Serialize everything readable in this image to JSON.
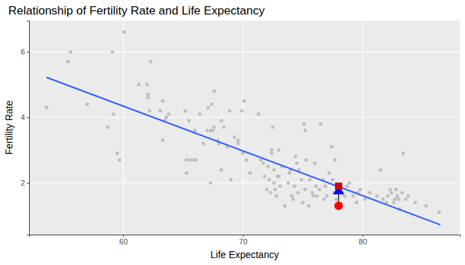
{
  "chart_data": {
    "type": "scatter",
    "title": "Relationship of Fertility Rate and Life Expectancy",
    "x_label": "Life Expectancy",
    "y_label": "Fertility Rate",
    "xlim": [
      52.14,
      88.15
    ],
    "ylim": [
      0.42,
      6.95
    ],
    "xticks": [
      60,
      70,
      80
    ],
    "yticks": [
      2,
      4,
      6
    ],
    "grid": true,
    "series": [
      {
        "type": "scatter",
        "marker": "circle",
        "color": "#bebebe",
        "x": [
          53.6,
          55.4,
          55.6,
          57.0,
          58.7,
          59.1,
          59.2,
          59.5,
          59.7,
          60.1,
          61.3,
          62.0,
          62.1,
          62.1,
          62.3,
          62.2,
          63.1,
          63.3,
          63.3,
          63.5,
          63.6,
          63.8,
          65.2,
          65.3,
          65.3,
          65.5,
          65.6,
          65.9,
          66.0,
          66.1,
          66.4,
          66.7,
          67.0,
          67.1,
          67.3,
          67.3,
          67.4,
          67.5,
          67.6,
          67.6,
          67.9,
          68.0,
          68.2,
          68.2,
          68.4,
          68.7,
          68.9,
          69.0,
          69.3,
          69.6,
          69.6,
          69.9,
          70.0,
          70.1,
          70.3,
          70.6,
          71.3,
          71.5,
          71.7,
          71.8,
          72.0,
          72.1,
          72.2,
          72.3,
          72.4,
          72.4,
          72.5,
          72.6,
          72.6,
          72.7,
          72.8,
          72.9,
          73.0,
          73.0,
          73.1,
          73.3,
          73.5,
          73.8,
          73.9,
          74.0,
          74.1,
          74.2,
          74.3,
          74.4,
          74.5,
          74.6,
          74.7,
          74.9,
          75.0,
          75.1,
          75.2,
          75.2,
          75.3,
          75.5,
          75.6,
          75.8,
          75.9,
          76.0,
          76.1,
          76.2,
          76.4,
          76.5,
          76.7,
          76.8,
          76.9,
          77.0,
          77.2,
          77.4,
          77.5,
          77.6,
          77.7,
          77.8,
          77.9,
          78.3,
          78.5,
          78.7,
          78.9,
          79.2,
          79.5,
          79.6,
          79.8,
          80.2,
          80.6,
          81.2,
          81.5,
          81.7,
          82.0,
          82.1,
          82.3,
          82.4,
          82.6,
          82.7,
          82.8,
          82.9,
          83.0,
          83.1,
          83.3,
          83.4,
          83.6,
          83.8,
          84.4,
          85.3,
          86.4
        ],
        "values": [
          4.3,
          5.7,
          6.0,
          4.4,
          3.7,
          6.0,
          4.1,
          2.9,
          2.7,
          6.6,
          5.0,
          5.0,
          4.7,
          4.6,
          5.7,
          4.2,
          4.2,
          4.5,
          3.3,
          3.9,
          4.0,
          4.1,
          4.2,
          2.7,
          2.3,
          3.9,
          2.7,
          2.7,
          3.6,
          2.7,
          4.1,
          3.2,
          3.6,
          4.3,
          3.6,
          2.0,
          4.4,
          3.6,
          4.8,
          3.7,
          3.3,
          3.2,
          3.9,
          2.4,
          3.7,
          3.1,
          4.2,
          2.1,
          3.4,
          3.3,
          3.2,
          4.2,
          2.9,
          4.5,
          2.7,
          2.3,
          4.1,
          2.7,
          2.6,
          2.2,
          1.8,
          2.5,
          2.1,
          1.7,
          3.0,
          2.9,
          3.7,
          2.4,
          2.0,
          1.8,
          1.6,
          2.2,
          2.2,
          3.0,
          1.9,
          2.5,
          1.3,
          2.0,
          2.3,
          2.4,
          1.6,
          1.5,
          1.9,
          2.8,
          2.6,
          1.7,
          2.4,
          2.1,
          1.4,
          3.8,
          1.8,
          3.6,
          2.7,
          1.3,
          2.1,
          1.7,
          1.6,
          2.6,
          1.9,
          1.6,
          1.8,
          3.8,
          2.1,
          1.5,
          1.9,
          1.6,
          2.3,
          3.1,
          2.1,
          1.7,
          2.7,
          1.5,
          1.8,
          1.7,
          1.6,
          1.9,
          2.0,
          1.6,
          1.4,
          1.7,
          1.8,
          1.5,
          1.7,
          1.6,
          2.4,
          1.5,
          1.4,
          1.6,
          1.8,
          1.7,
          1.4,
          1.5,
          1.8,
          1.6,
          1.5,
          1.2,
          1.7,
          2.9,
          1.5,
          1.6,
          1.4,
          1.3,
          1.1
        ]
      },
      {
        "type": "line",
        "color": "#3366ff",
        "x": [
          53.6,
          86.5
        ],
        "values": [
          5.22,
          0.72
        ]
      },
      {
        "type": "line",
        "color": "#000000",
        "x": [
          78,
          78
        ],
        "values": [
          1.3,
          1.9
        ]
      },
      {
        "type": "scatter",
        "marker": "circle",
        "color": "#ff0000",
        "x": [
          78
        ],
        "values": [
          1.3
        ]
      },
      {
        "type": "scatter",
        "marker": "triangle",
        "color": "#0000ff",
        "x": [
          78
        ],
        "values": [
          1.75
        ]
      },
      {
        "type": "scatter",
        "marker": "square",
        "color": "#cc0000",
        "x": [
          78
        ],
        "values": [
          1.9
        ]
      }
    ]
  }
}
